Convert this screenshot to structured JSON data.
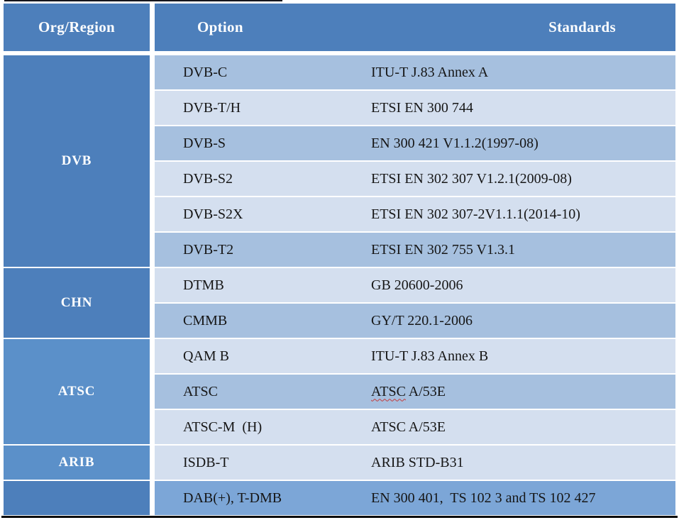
{
  "header": {
    "org_region": "Org/Region",
    "option": "Option",
    "standards": "Standards"
  },
  "groups": [
    {
      "label": "DVB",
      "rows": 6,
      "tone": "dark"
    },
    {
      "label": "CHN",
      "rows": 2,
      "tone": "dark"
    },
    {
      "label": "ATSC",
      "rows": 3,
      "tone": "light"
    },
    {
      "label": "ARIB",
      "rows": 1,
      "tone": "light"
    },
    {
      "label": "",
      "rows": 1,
      "tone": "dark"
    }
  ],
  "rows": [
    {
      "option": "DVB-C",
      "standard": "ITU-T J.83 Annex A",
      "shade": "a"
    },
    {
      "option": "DVB-T/H",
      "standard": "ETSI EN 300 744",
      "shade": "b"
    },
    {
      "option": "DVB-S",
      "standard": "EN 300 421 V1.1.2(1997-08)",
      "shade": "a"
    },
    {
      "option": "DVB-S2",
      "standard": "ETSI EN 302 307 V1.2.1(2009-08)",
      "shade": "b"
    },
    {
      "option": "DVB-S2X",
      "standard": "ETSI EN 302 307-2V1.1.1(2014-10)",
      "shade": "b"
    },
    {
      "option": "DVB-T2",
      "standard": "ETSI EN 302 755 V1.3.1",
      "shade": "a"
    },
    {
      "option": "DTMB",
      "standard": "GB 20600-2006",
      "shade": "b"
    },
    {
      "option": "CMMB",
      "standard": "GY/T 220.1-2006",
      "shade": "a"
    },
    {
      "option": "QAM B",
      "standard": "ITU-T J.83 Annex B",
      "shade": "b"
    },
    {
      "option": "ATSC",
      "standard_misspelled": "ATSC",
      "standard_rest": " A/53E",
      "shade": "a"
    },
    {
      "option": "ATSC-M  (H)",
      "standard": "ATSC A/53E",
      "shade": "b"
    },
    {
      "option": "ISDB-T",
      "standard": "ARIB STD-B31",
      "shade": "b"
    },
    {
      "option": "DAB(+), T-DMB",
      "standard": "EN 300 401,  TS 102 3 and TS 102 427",
      "shade": "c"
    }
  ],
  "colors": {
    "header_bg": "#4d7fbb",
    "group_dark": "#4d7fbb",
    "group_light": "#5b90c9",
    "shade_a": "#a6c0df",
    "shade_b": "#d4dfef",
    "shade_c": "#7ca6d7",
    "body_text": "#161616",
    "squiggle": "#c43b3b"
  }
}
